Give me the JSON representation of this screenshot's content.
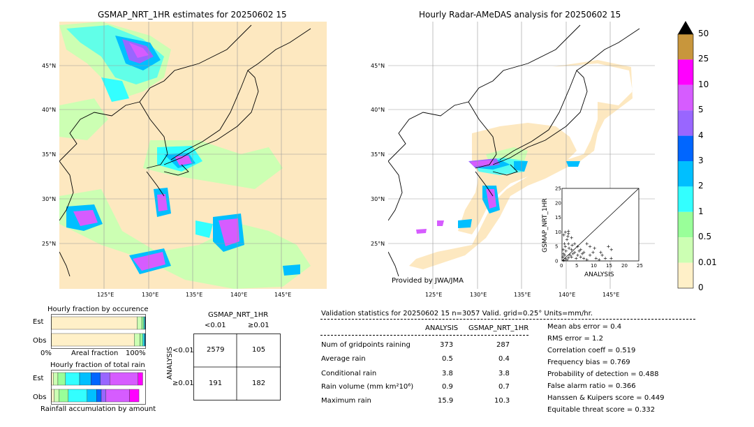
{
  "left_map": {
    "title": "GSMAP_NRT_1HR estimates for 20250602 15",
    "lat_ticks": [
      "45°N",
      "40°N",
      "35°N",
      "30°N",
      "25°N"
    ],
    "lon_ticks": [
      "125°E",
      "130°E",
      "135°E",
      "140°E",
      "145°E"
    ]
  },
  "right_map": {
    "title": "Hourly Radar-AMeDAS analysis for 20250602 15",
    "lat_ticks": [
      "45°N",
      "40°N",
      "35°N",
      "30°N",
      "25°N"
    ],
    "lon_ticks": [
      "125°E",
      "130°E",
      "135°E",
      "140°E",
      "145°E"
    ],
    "credit": "Provided by JWA/JMA"
  },
  "colorbar": {
    "labels": [
      "50",
      "25",
      "10",
      "5",
      "4",
      "3",
      "2",
      "1",
      "0.5",
      "0.01",
      "0"
    ],
    "colors": [
      "#c8963c",
      "#ff00ff",
      "#d65cff",
      "#9966ff",
      "#0066ff",
      "#00bfff",
      "#33ffff",
      "#99ff99",
      "#ccffb3",
      "#fff0c8"
    ],
    "extend_color": "#000000"
  },
  "occurrence": {
    "title": "Hourly fraction by occurence",
    "row_est": "Est",
    "row_obs": "Obs",
    "x_left": "0%",
    "x_mid": "Areal fraction",
    "x_right": "100%"
  },
  "amount": {
    "title": "Hourly fraction of total rain",
    "row_est": "Est",
    "row_obs": "Obs",
    "footer": "Rainfall accumulation by amount"
  },
  "contingency": {
    "title": "GSMAP_NRT_1HR",
    "col_lt": "<0.01",
    "col_ge": "≥0.01",
    "axis_label": "ANALYSIS",
    "row_lt": "<0.01",
    "row_ge": "≥0.01",
    "cells": [
      "2579",
      "105",
      "191",
      "182"
    ]
  },
  "validation": {
    "header": "Validation statistics for 20250602 15  n=3057 Valid. grid=0.25° Units=mm/hr.",
    "col_analysis": "ANALYSIS",
    "col_gsmap": "GSMAP_NRT_1HR",
    "rows": [
      {
        "label": "Num of gridpoints raining",
        "analysis": "373",
        "gsmap": "287"
      },
      {
        "label": "Average rain",
        "analysis": "0.5",
        "gsmap": "0.4"
      },
      {
        "label": "Conditional rain",
        "analysis": "3.8",
        "gsmap": "3.8"
      },
      {
        "label": "Rain volume (mm km²10⁶)",
        "analysis": "0.9",
        "gsmap": "0.7"
      },
      {
        "label": "Maximum rain",
        "analysis": "15.9",
        "gsmap": "10.3"
      }
    ],
    "scores": [
      "Mean abs error =    0.4",
      "RMS error =    1.2",
      "Correlation coeff =  0.519",
      "Frequency bias =  0.769",
      "Probability of detection =  0.488",
      "False alarm ratio =  0.366",
      "Hanssen & Kuipers score =  0.449",
      "Equitable threat score =  0.332"
    ]
  },
  "chart_data": [
    {
      "type": "scatter",
      "xlabel": "ANALYSIS",
      "ylabel": "GSMAP_NRT_1HR",
      "xlim": [
        0,
        25
      ],
      "ylim": [
        0,
        25
      ],
      "ticks": [
        "0",
        "5",
        "10",
        "15",
        "20",
        "25"
      ],
      "points": [
        [
          0.5,
          0.3
        ],
        [
          1,
          0.8
        ],
        [
          1.5,
          0.5
        ],
        [
          2,
          1.2
        ],
        [
          0.8,
          2
        ],
        [
          1.2,
          3.5
        ],
        [
          2.5,
          2
        ],
        [
          3,
          1.5
        ],
        [
          0.3,
          4
        ],
        [
          1,
          5
        ],
        [
          2,
          6
        ],
        [
          1.5,
          7.5
        ],
        [
          0.5,
          9
        ],
        [
          1,
          10
        ],
        [
          2,
          9.5
        ],
        [
          3,
          4
        ],
        [
          4,
          3
        ],
        [
          5,
          2
        ],
        [
          6,
          1.5
        ],
        [
          7,
          1
        ],
        [
          8,
          0.5
        ],
        [
          9,
          2
        ],
        [
          10,
          3
        ],
        [
          11,
          1
        ],
        [
          12,
          0.5
        ],
        [
          13,
          2
        ],
        [
          15,
          5
        ],
        [
          16,
          4
        ],
        [
          14,
          1
        ],
        [
          4,
          6
        ],
        [
          5,
          5
        ],
        [
          6,
          4
        ],
        [
          7,
          3
        ],
        [
          8,
          6
        ],
        [
          9,
          5
        ],
        [
          3,
          8
        ],
        [
          2,
          10.3
        ],
        [
          1.8,
          8.5
        ],
        [
          0.7,
          6
        ],
        [
          3.5,
          2.5
        ],
        [
          4.5,
          1
        ],
        [
          5.5,
          3.5
        ],
        [
          6.5,
          2.5
        ],
        [
          10.5,
          4.5
        ],
        [
          12.5,
          3
        ],
        [
          15.9,
          1
        ],
        [
          0.2,
          1.5
        ],
        [
          0.4,
          2.5
        ],
        [
          2.2,
          4.5
        ],
        [
          3.2,
          5.5
        ]
      ]
    },
    {
      "type": "bar",
      "title": "Hourly fraction by occurence",
      "stacked": true,
      "categories": [
        "Est",
        "Obs"
      ],
      "series": [
        {
          "values": [
            0.91,
            0.88
          ]
        },
        {
          "values": [
            0.05,
            0.06
          ]
        },
        {
          "values": [
            0.02,
            0.03
          ]
        },
        {
          "values": [
            0.01,
            0.015
          ]
        },
        {
          "values": [
            0.005,
            0.01
          ]
        },
        {
          "values": [
            0.005,
            0.005
          ]
        }
      ]
    },
    {
      "type": "bar",
      "title": "Hourly fraction of total rain",
      "stacked": true,
      "categories": [
        "Est",
        "Obs"
      ],
      "series": [
        {
          "values": [
            0.02,
            0.03
          ]
        },
        {
          "values": [
            0.05,
            0.05
          ]
        },
        {
          "values": [
            0.08,
            0.1
          ]
        },
        {
          "values": [
            0.15,
            0.2
          ]
        },
        {
          "values": [
            0.12,
            0.1
          ]
        },
        {
          "values": [
            0.1,
            0.05
          ]
        },
        {
          "values": [
            0.1,
            0.05
          ]
        },
        {
          "values": [
            0.3,
            0.25
          ]
        },
        {
          "values": [
            0.05,
            0.1
          ]
        }
      ]
    }
  ]
}
